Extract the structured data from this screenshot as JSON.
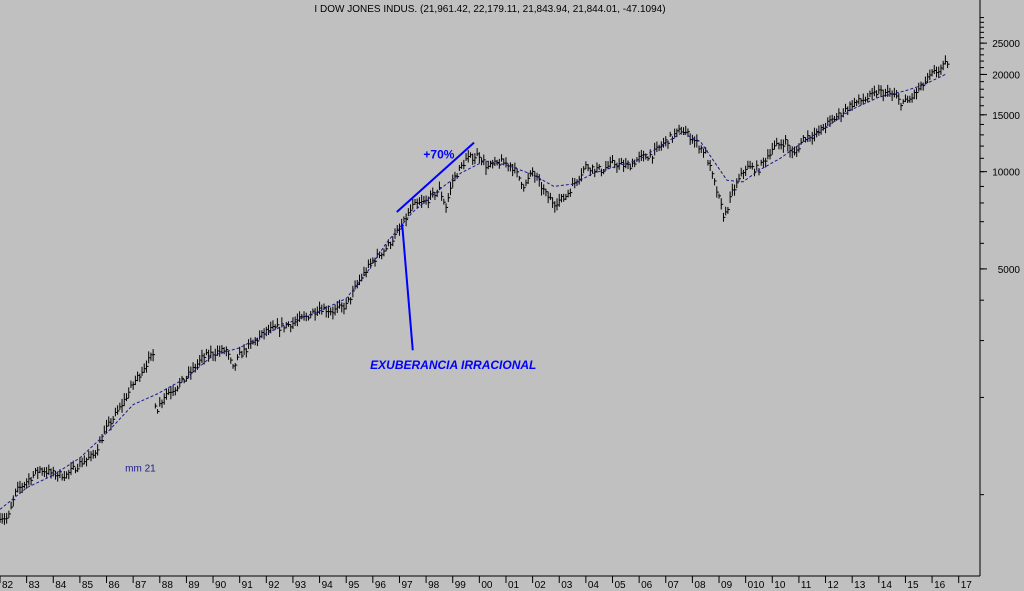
{
  "chart_data": {
    "type": "line",
    "title": "I DOW JONES INDUS. (21,961.42, 22,179.11, 21,843.94, 21,844.01, -47.1094)",
    "y_scale": "log",
    "y_ticks": [
      5000,
      10000,
      15000,
      20000,
      25000
    ],
    "x_ticks": [
      "82",
      "83",
      "84",
      "85",
      "86",
      "87",
      "88",
      "89",
      "90",
      "91",
      "92",
      "93",
      "94",
      "95",
      "96",
      "97",
      "98",
      "99",
      "00",
      "01",
      "02",
      "03",
      "04",
      "05",
      "06",
      "07",
      "08",
      "09",
      "010",
      "10",
      "11",
      "12",
      "13",
      "14",
      "15",
      "16",
      "17"
    ],
    "series": [
      {
        "name": "mm 21",
        "style": "dashed",
        "points": [
          [
            1982.0,
            900
          ],
          [
            1983.0,
            1050
          ],
          [
            1984.0,
            1150
          ],
          [
            1985.0,
            1300
          ],
          [
            1986.0,
            1550
          ],
          [
            1987.0,
            1900
          ],
          [
            1987.9,
            2050
          ],
          [
            1989.0,
            2300
          ],
          [
            1990.0,
            2700
          ],
          [
            1991.0,
            2850
          ],
          [
            1992.0,
            3150
          ],
          [
            1993.0,
            3450
          ],
          [
            1994.0,
            3700
          ],
          [
            1995.0,
            4050
          ],
          [
            1995.8,
            4900
          ],
          [
            1996.5,
            6000
          ],
          [
            1997.5,
            7500
          ],
          [
            1998.5,
            8800
          ],
          [
            1999.3,
            9900
          ],
          [
            2000.2,
            10800
          ],
          [
            2001.0,
            10500
          ],
          [
            2002.0,
            9800
          ],
          [
            2002.8,
            9000
          ],
          [
            2003.5,
            9150
          ],
          [
            2004.3,
            9900
          ],
          [
            2005.0,
            10300
          ],
          [
            2006.0,
            10900
          ],
          [
            2007.0,
            12300
          ],
          [
            2007.6,
            13200
          ],
          [
            2008.3,
            12400
          ],
          [
            2008.8,
            10800
          ],
          [
            2009.3,
            9400
          ],
          [
            2009.9,
            9300
          ],
          [
            2010.5,
            10100
          ],
          [
            2011.3,
            11000
          ],
          [
            2012.0,
            12100
          ],
          [
            2013.0,
            13700
          ],
          [
            2014.0,
            15600
          ],
          [
            2015.0,
            17000
          ],
          [
            2016.0,
            17800
          ],
          [
            2016.7,
            18600
          ],
          [
            2017.5,
            20000
          ]
        ]
      },
      {
        "name": "",
        "style": "bars",
        "points": [
          [
            1982.0,
            860
          ],
          [
            1982.3,
            840
          ],
          [
            1982.6,
            1020
          ],
          [
            1983.0,
            1100
          ],
          [
            1983.5,
            1200
          ],
          [
            1984.0,
            1160
          ],
          [
            1984.5,
            1150
          ],
          [
            1985.0,
            1250
          ],
          [
            1985.5,
            1320
          ],
          [
            1986.0,
            1600
          ],
          [
            1986.5,
            1850
          ],
          [
            1987.0,
            2200
          ],
          [
            1987.5,
            2550
          ],
          [
            1987.75,
            2700
          ],
          [
            1987.85,
            1800
          ],
          [
            1988.2,
            2050
          ],
          [
            1988.6,
            2150
          ],
          [
            1989.0,
            2300
          ],
          [
            1989.6,
            2650
          ],
          [
            1990.0,
            2750
          ],
          [
            1990.5,
            2800
          ],
          [
            1990.75,
            2450
          ],
          [
            1991.0,
            2700
          ],
          [
            1991.5,
            2950
          ],
          [
            1992.0,
            3200
          ],
          [
            1992.5,
            3300
          ],
          [
            1993.0,
            3400
          ],
          [
            1993.5,
            3550
          ],
          [
            1994.0,
            3800
          ],
          [
            1994.5,
            3700
          ],
          [
            1995.0,
            3850
          ],
          [
            1995.5,
            4600
          ],
          [
            1996.0,
            5300
          ],
          [
            1996.5,
            5800
          ],
          [
            1997.0,
            6600
          ],
          [
            1997.5,
            7800
          ],
          [
            1998.0,
            8100
          ],
          [
            1998.5,
            8800
          ],
          [
            1998.75,
            7800
          ],
          [
            1999.0,
            9400
          ],
          [
            1999.5,
            10900
          ],
          [
            2000.0,
            11300
          ],
          [
            2000.3,
            10300
          ],
          [
            2000.8,
            10700
          ],
          [
            2001.2,
            10500
          ],
          [
            2001.7,
            9000
          ],
          [
            2002.0,
            10000
          ],
          [
            2002.5,
            8500
          ],
          [
            2002.8,
            8000
          ],
          [
            2003.2,
            8300
          ],
          [
            2003.6,
            9300
          ],
          [
            2004.0,
            10400
          ],
          [
            2004.6,
            10100
          ],
          [
            2005.0,
            10600
          ],
          [
            2005.6,
            10400
          ],
          [
            2006.0,
            11000
          ],
          [
            2006.5,
            11300
          ],
          [
            2007.0,
            12400
          ],
          [
            2007.6,
            13500
          ],
          [
            2008.0,
            12700
          ],
          [
            2008.5,
            11400
          ],
          [
            2008.9,
            8800
          ],
          [
            2009.2,
            7200
          ],
          [
            2009.5,
            8600
          ],
          [
            2010.0,
            10300
          ],
          [
            2010.5,
            10200
          ],
          [
            2011.0,
            11800
          ],
          [
            2011.5,
            12400
          ],
          [
            2011.8,
            11200
          ],
          [
            2012.2,
            12800
          ],
          [
            2012.7,
            13100
          ],
          [
            2013.0,
            13900
          ],
          [
            2013.6,
            15200
          ],
          [
            2014.0,
            16200
          ],
          [
            2014.6,
            16900
          ],
          [
            2015.0,
            17700
          ],
          [
            2015.6,
            17200
          ],
          [
            2015.8,
            16400
          ],
          [
            2016.1,
            16500
          ],
          [
            2016.6,
            18300
          ],
          [
            2017.0,
            20000
          ],
          [
            2017.4,
            21000
          ],
          [
            2017.6,
            21900
          ]
        ]
      },
      {
        "name": "",
        "style": "solid",
        "color": "#0000ff",
        "points": [
          [
            1996.9,
            7500
          ],
          [
            1999.8,
            12300
          ]
        ]
      }
    ],
    "annotations": [
      {
        "text": "+70%",
        "at": [
          1997.9,
          11000
        ],
        "color": "#0000ff"
      },
      {
        "text": "EXUBERANCIA IRRACIONAL",
        "at": [
          1995.9,
          2450
        ],
        "color": "#0000ff",
        "pointer_to": [
          1997.1,
          6900
        ],
        "pointer_from": [
          1997.5,
          2800
        ]
      },
      {
        "text": "mm 21",
        "at": [
          1986.7,
          1180
        ],
        "color": "#1a1a8a"
      }
    ],
    "xlim": [
      1982.0,
      2018.8
    ],
    "ylim": [
      560,
      34000
    ],
    "grid": false
  }
}
